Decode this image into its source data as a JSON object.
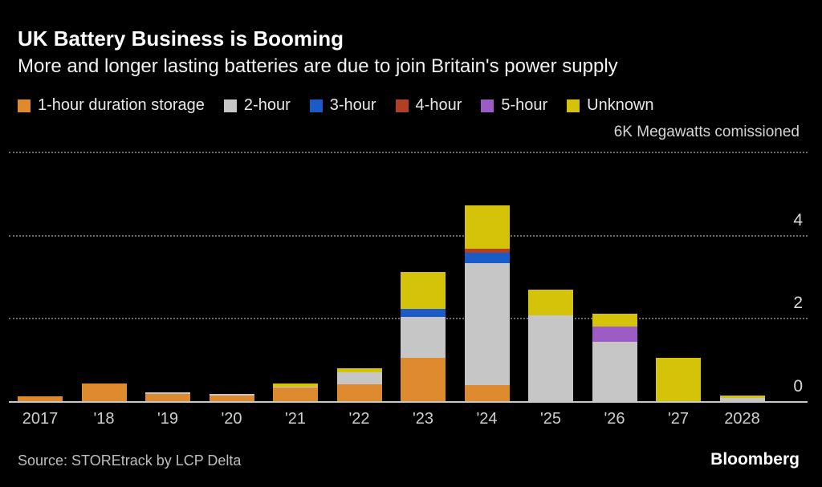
{
  "header": {
    "title": "UK Battery Business is Booming",
    "subtitle": "More and longer lasting batteries are due to join Britain's power supply"
  },
  "footer": {
    "source": "Source: STOREtrack by LCP Delta",
    "brand": "Bloomberg"
  },
  "colors": {
    "background": "#000000",
    "gridline": "#6b6b6b",
    "axis_line": "#c8c8c8",
    "tick_text": "#cfcfcf"
  },
  "chart_data": {
    "type": "bar",
    "stacked": true,
    "title": "UK Battery Business is Booming",
    "subtitle": "More and longer lasting batteries are due to join Britain's power supply",
    "unit_label": "6K Megawatts comissioned",
    "ylabel": "Megawatts commissioned (K)",
    "ylim": [
      0,
      6
    ],
    "yticks": [
      0,
      2,
      4
    ],
    "gridline_values": [
      2,
      4,
      6
    ],
    "grid": "dotted horizontal",
    "legend_position": "top",
    "categories": [
      "2017",
      "'18",
      "'19",
      "'20",
      "'21",
      "'22",
      "'23",
      "'24",
      "'25",
      "'26",
      "'27",
      "2028"
    ],
    "series": [
      {
        "name": "1-hour duration storage",
        "color": "#DD8B2E",
        "values": [
          0.11,
          0.43,
          0.18,
          0.13,
          0.32,
          0.4,
          1.05,
          0.38,
          0,
          0,
          0,
          0
        ]
      },
      {
        "name": "2-hour",
        "color": "#C6C6C6",
        "values": [
          0,
          0,
          0.04,
          0.05,
          0.03,
          0.29,
          0.98,
          2.95,
          2.07,
          1.43,
          0,
          0.07
        ]
      },
      {
        "name": "3-hour",
        "color": "#1A5BC8",
        "values": [
          0,
          0,
          0,
          0,
          0,
          0,
          0.19,
          0.25,
          0,
          0,
          0,
          0
        ]
      },
      {
        "name": "4-hour",
        "color": "#B0401F",
        "values": [
          0,
          0,
          0,
          0,
          0,
          0,
          0,
          0.08,
          0,
          0,
          0,
          0
        ]
      },
      {
        "name": "5-hour",
        "color": "#9D5BC5",
        "values": [
          0,
          0,
          0,
          0,
          0,
          0,
          0,
          0,
          0,
          0.36,
          0,
          0
        ]
      },
      {
        "name": "Unknown",
        "color": "#D5C309",
        "values": [
          0,
          0,
          0,
          0,
          0.08,
          0.1,
          0.88,
          1.06,
          0.62,
          0.31,
          1.04,
          0.06
        ]
      }
    ]
  }
}
